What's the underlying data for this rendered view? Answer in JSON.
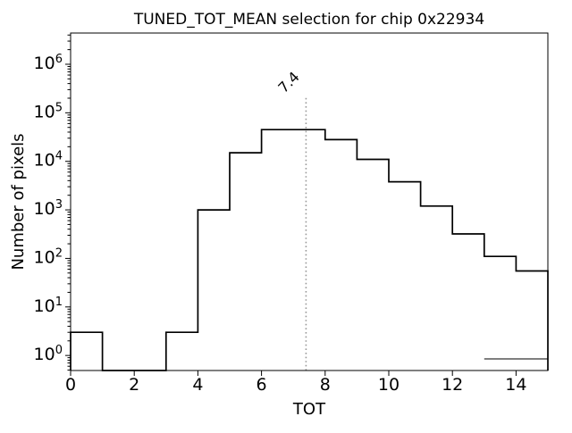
{
  "chart_data": {
    "type": "bar",
    "subtype": "step-histogram",
    "title": "TUNED_TOT_MEAN selection for chip 0x22934",
    "xlabel": "TOT",
    "ylabel": "Number of pixels",
    "yscale": "log",
    "xlim": [
      0,
      15
    ],
    "ylim": [
      0.49,
      4400000
    ],
    "bin_edges": [
      0,
      1,
      2,
      3,
      4,
      5,
      6,
      7,
      8,
      9,
      10,
      11,
      12,
      13,
      14,
      15
    ],
    "counts": [
      3,
      0,
      0,
      3,
      1000,
      15000,
      45000,
      45000,
      28000,
      11000,
      3800,
      1200,
      320,
      110,
      55
    ],
    "x_ticks": [
      0,
      2,
      4,
      6,
      8,
      10,
      12,
      14
    ],
    "y_tick_exponents": [
      0,
      1,
      2,
      3,
      4,
      5,
      6
    ],
    "grid": false,
    "legend": null,
    "line_color": "#000000",
    "vline": {
      "x": 7.4,
      "label": "7.4",
      "color": "#999999",
      "style": "dotted"
    },
    "tail_segment": {
      "x_from": 13,
      "x_to": 15,
      "y": 0.85,
      "color": "#333333"
    }
  }
}
